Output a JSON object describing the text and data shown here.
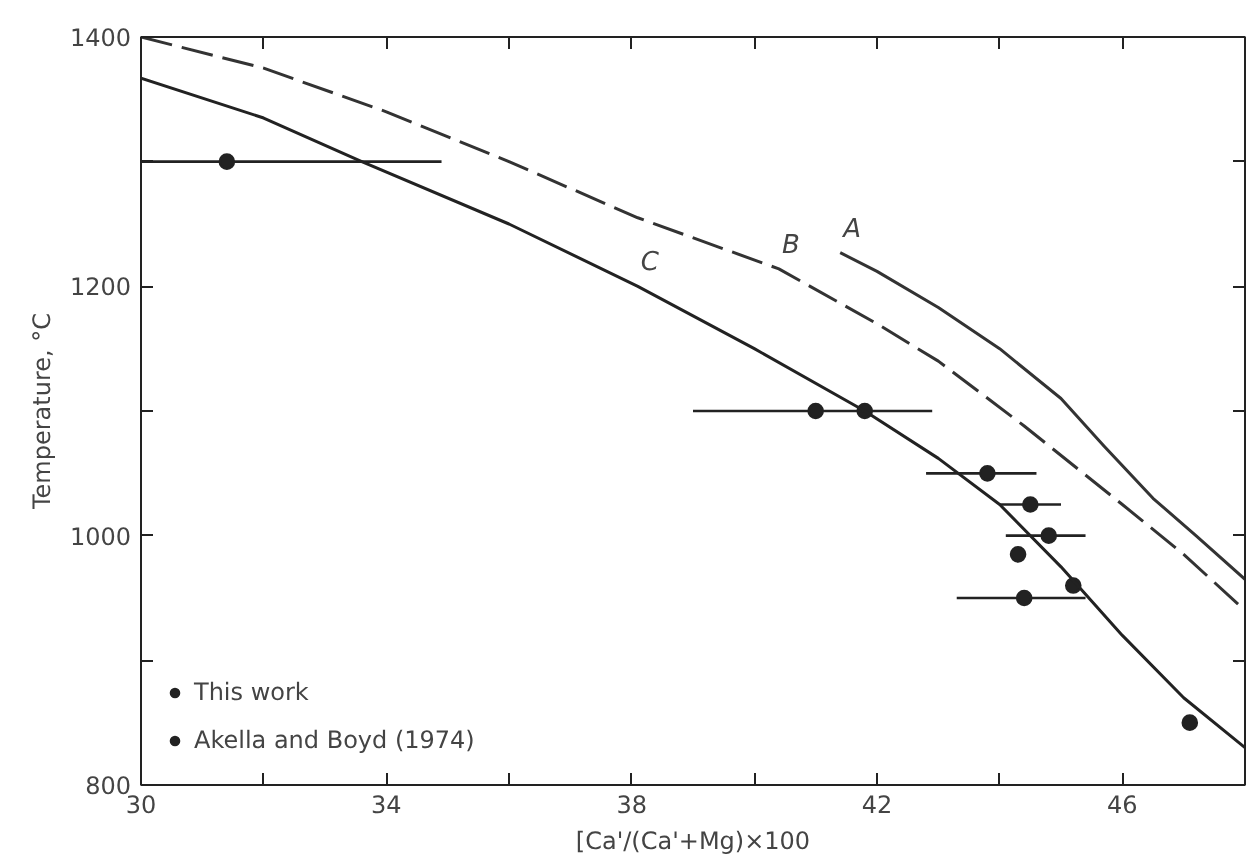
{
  "chart_data": {
    "type": "scatter",
    "xlabel": "[Ca'/(Ca'+Mg)×100",
    "ylabel": "Temperature, °C",
    "xlim": [
      30,
      48
    ],
    "ylim": [
      800,
      1400
    ],
    "xticks": [
      30,
      {
        "value": 32,
        "label": null
      },
      34,
      {
        "value": 36,
        "label": null
      },
      38,
      {
        "value": 40,
        "label": null
      },
      42,
      {
        "value": 44,
        "label": null
      },
      46,
      {
        "value": 48,
        "label": null
      }
    ],
    "yticks": [
      800,
      {
        "value": 900,
        "label": null
      },
      1000,
      {
        "value": 1100,
        "label": null
      },
      1200,
      {
        "value": 1300,
        "label": null
      },
      1400
    ],
    "grid": false,
    "legend": "bottom left",
    "series": [
      {
        "name": "This work",
        "marker": "circle",
        "color": "#222222",
        "x": [
          41.8,
          43.8,
          44.5,
          44.8,
          44.3,
          45.2,
          44.4,
          47.1
        ],
        "values": [
          1100,
          1050,
          1025,
          1000,
          985,
          960,
          950,
          850
        ],
        "xerrors": [
          null,
          [
            42.8,
            44.6
          ],
          [
            44.0,
            45.0
          ],
          [
            44.1,
            45.4
          ],
          null,
          null,
          [
            43.3,
            45.4
          ],
          null
        ]
      },
      {
        "name": "Akella and Boyd (1974)",
        "marker": "circle",
        "color": "#222222",
        "x": [
          31.4,
          41.0
        ],
        "values": [
          1300,
          1100
        ],
        "xerrors": [
          [
            30.0,
            34.9
          ],
          [
            39.0,
            42.9
          ]
        ]
      },
      {
        "type": "line",
        "color": "#333333",
        "line_style": "solid",
        "x": [
          41.4,
          42,
          43,
          44,
          45,
          45.7,
          46.5,
          47.2,
          48
        ],
        "values": [
          1227,
          1212,
          1183,
          1150,
          1110,
          1072,
          1030,
          1000,
          965
        ]
      },
      {
        "type": "line",
        "color": "#333333",
        "line_style": "dashed",
        "x": [
          30,
          32,
          34,
          36,
          38.1,
          40.4,
          42,
          43,
          44.4,
          46,
          47,
          48
        ],
        "values": [
          1400,
          1375,
          1340,
          1300,
          1255,
          1214,
          1170,
          1140,
          1088,
          1025,
          985,
          940
        ]
      },
      {
        "type": "line",
        "color": "#222222",
        "line_style": "solid",
        "x": [
          30,
          32,
          33.6,
          36,
          38.1,
          40,
          41.8,
          43,
          44,
          45,
          46,
          47,
          48
        ],
        "values": [
          1367,
          1335,
          1300,
          1250,
          1200,
          1150,
          1100,
          1062,
          1025,
          975,
          920,
          870,
          830
        ]
      }
    ],
    "annotations": [
      {
        "text": "A",
        "x": 41.4,
        "y": 1227
      },
      {
        "text": "B",
        "x": 40.4,
        "y": 1214
      },
      {
        "text": "C",
        "x": 38.1,
        "y": 1200
      }
    ]
  }
}
